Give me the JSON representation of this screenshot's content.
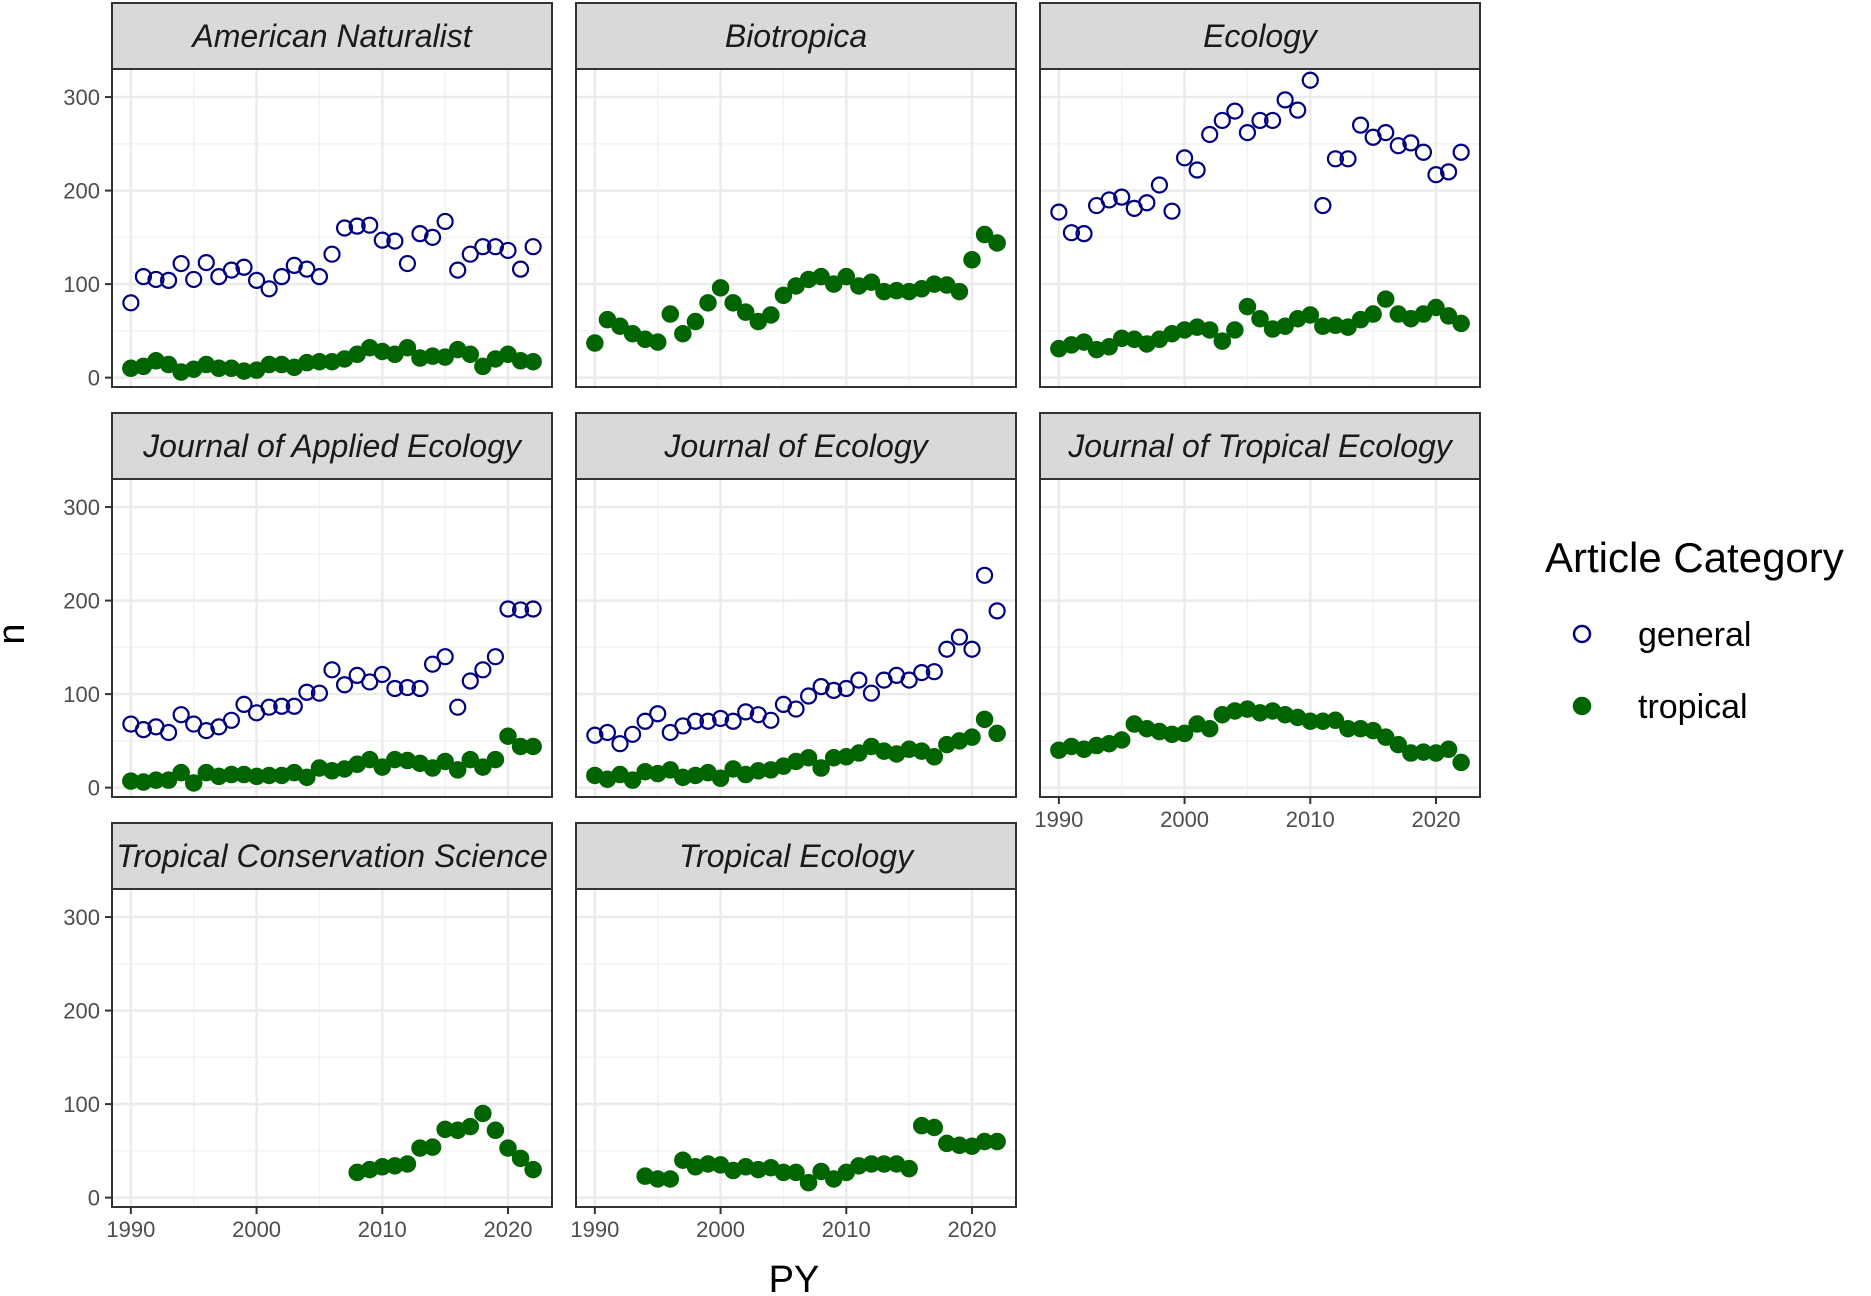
{
  "chart_data": {
    "type": "scatter",
    "facet_wrap": true,
    "xlabel": "PY",
    "ylabel": "n",
    "xlim": [
      1988.5,
      2023.5
    ],
    "ylim": [
      -10,
      330
    ],
    "x_ticks": [
      1990,
      2000,
      2010,
      2020
    ],
    "y_ticks": [
      0,
      100,
      200,
      300
    ],
    "grid": true,
    "legend": {
      "title": "Article Category",
      "position": "right",
      "items": [
        {
          "label": "general",
          "color": "#000080",
          "shape": "open-circle"
        },
        {
          "label": "tropical",
          "color": "#006400",
          "shape": "filled-circle"
        }
      ]
    },
    "panels": [
      {
        "title": "American Naturalist",
        "series": [
          {
            "name": "general",
            "x": [
              1990,
              1991,
              1992,
              1993,
              1994,
              1995,
              1996,
              1997,
              1998,
              1999,
              2000,
              2001,
              2002,
              2003,
              2004,
              2005,
              2006,
              2007,
              2008,
              2009,
              2010,
              2011,
              2012,
              2013,
              2014,
              2015,
              2016,
              2017,
              2018,
              2019,
              2020,
              2021,
              2022
            ],
            "y": [
              80,
              108,
              105,
              104,
              122,
              105,
              123,
              108,
              115,
              118,
              104,
              95,
              108,
              120,
              116,
              108,
              132,
              160,
              162,
              163,
              147,
              146,
              122,
              154,
              150,
              167,
              115,
              132,
              140,
              140,
              136,
              116,
              140
            ]
          },
          {
            "name": "tropical",
            "x": [
              1990,
              1991,
              1992,
              1993,
              1994,
              1995,
              1996,
              1997,
              1998,
              1999,
              2000,
              2001,
              2002,
              2003,
              2004,
              2005,
              2006,
              2007,
              2008,
              2009,
              2010,
              2011,
              2012,
              2013,
              2014,
              2015,
              2016,
              2017,
              2018,
              2019,
              2020,
              2021,
              2022
            ],
            "y": [
              10,
              12,
              18,
              14,
              6,
              9,
              14,
              10,
              10,
              7,
              8,
              14,
              14,
              11,
              16,
              17,
              17,
              20,
              25,
              32,
              28,
              25,
              32,
              21,
              23,
              22,
              30,
              25,
              12,
              20,
              25,
              18,
              17
            ]
          }
        ]
      },
      {
        "title": "Biotropica",
        "series": [
          {
            "name": "tropical",
            "x": [
              1990,
              1991,
              1992,
              1993,
              1994,
              1995,
              1996,
              1997,
              1998,
              1999,
              2000,
              2001,
              2002,
              2003,
              2004,
              2005,
              2006,
              2007,
              2008,
              2009,
              2010,
              2011,
              2012,
              2013,
              2014,
              2015,
              2016,
              2017,
              2018,
              2019,
              2020,
              2021,
              2022
            ],
            "y": [
              37,
              62,
              55,
              47,
              41,
              38,
              68,
              47,
              60,
              80,
              96,
              80,
              70,
              60,
              67,
              88,
              98,
              105,
              108,
              100,
              108,
              98,
              102,
              92,
              93,
              92,
              95,
              100,
              99,
              92,
              126,
              153,
              144
            ]
          }
        ]
      },
      {
        "title": "Ecology",
        "series": [
          {
            "name": "general",
            "x": [
              1990,
              1991,
              1992,
              1993,
              1994,
              1995,
              1996,
              1997,
              1998,
              1999,
              2000,
              2001,
              2002,
              2003,
              2004,
              2005,
              2006,
              2007,
              2008,
              2009,
              2010,
              2011,
              2012,
              2013,
              2014,
              2015,
              2016,
              2017,
              2018,
              2019,
              2020,
              2021,
              2022
            ],
            "y": [
              177,
              155,
              154,
              184,
              190,
              193,
              181,
              187,
              206,
              178,
              235,
              222,
              260,
              275,
              285,
              262,
              275,
              275,
              297,
              286,
              318,
              184,
              234,
              234,
              270,
              257,
              262,
              248,
              251,
              241,
              217,
              220,
              241
            ]
          },
          {
            "name": "tropical",
            "x": [
              1990,
              1991,
              1992,
              1993,
              1994,
              1995,
              1996,
              1997,
              1998,
              1999,
              2000,
              2001,
              2002,
              2003,
              2004,
              2005,
              2006,
              2007,
              2008,
              2009,
              2010,
              2011,
              2012,
              2013,
              2014,
              2015,
              2016,
              2017,
              2018,
              2019,
              2020,
              2021,
              2022
            ],
            "y": [
              31,
              35,
              38,
              30,
              33,
              42,
              41,
              36,
              41,
              47,
              51,
              54,
              51,
              39,
              51,
              76,
              63,
              52,
              55,
              63,
              67,
              55,
              56,
              54,
              62,
              68,
              84,
              68,
              63,
              68,
              75,
              66,
              58
            ]
          }
        ]
      },
      {
        "title": "Journal of Applied Ecology",
        "series": [
          {
            "name": "general",
            "x": [
              1990,
              1991,
              1992,
              1993,
              1994,
              1995,
              1996,
              1997,
              1998,
              1999,
              2000,
              2001,
              2002,
              2003,
              2004,
              2005,
              2006,
              2007,
              2008,
              2009,
              2010,
              2011,
              2012,
              2013,
              2014,
              2015,
              2016,
              2017,
              2018,
              2019,
              2020,
              2021,
              2022
            ],
            "y": [
              68,
              62,
              65,
              59,
              78,
              68,
              61,
              65,
              72,
              89,
              80,
              86,
              87,
              87,
              102,
              101,
              126,
              110,
              120,
              113,
              121,
              106,
              107,
              106,
              132,
              140,
              86,
              114,
              126,
              140,
              191,
              190,
              191
            ]
          },
          {
            "name": "tropical",
            "x": [
              1990,
              1991,
              1992,
              1993,
              1994,
              1995,
              1996,
              1997,
              1998,
              1999,
              2000,
              2001,
              2002,
              2003,
              2004,
              2005,
              2006,
              2007,
              2008,
              2009,
              2010,
              2011,
              2012,
              2013,
              2014,
              2015,
              2016,
              2017,
              2018,
              2019,
              2020,
              2021,
              2022
            ],
            "y": [
              7,
              6,
              8,
              8,
              16,
              5,
              16,
              12,
              14,
              14,
              12,
              13,
              13,
              16,
              11,
              21,
              18,
              20,
              25,
              30,
              22,
              30,
              29,
              26,
              21,
              28,
              19,
              30,
              22,
              30,
              55,
              44,
              44
            ]
          }
        ]
      },
      {
        "title": "Journal of Ecology",
        "series": [
          {
            "name": "general",
            "x": [
              1990,
              1991,
              1992,
              1993,
              1994,
              1995,
              1996,
              1997,
              1998,
              1999,
              2000,
              2001,
              2002,
              2003,
              2004,
              2005,
              2006,
              2007,
              2008,
              2009,
              2010,
              2011,
              2012,
              2013,
              2014,
              2015,
              2016,
              2017,
              2018,
              2019,
              2020,
              2021,
              2022
            ],
            "y": [
              56,
              59,
              47,
              57,
              71,
              79,
              59,
              66,
              71,
              71,
              74,
              71,
              81,
              78,
              72,
              89,
              84,
              98,
              108,
              104,
              106,
              115,
              101,
              115,
              120,
              115,
              123,
              124,
              148,
              161,
              148,
              227,
              189
            ]
          },
          {
            "name": "tropical",
            "x": [
              1990,
              1991,
              1992,
              1993,
              1994,
              1995,
              1996,
              1997,
              1998,
              1999,
              2000,
              2001,
              2002,
              2003,
              2004,
              2005,
              2006,
              2007,
              2008,
              2009,
              2010,
              2011,
              2012,
              2013,
              2014,
              2015,
              2016,
              2017,
              2018,
              2019,
              2020,
              2021,
              2022
            ],
            "y": [
              13,
              9,
              14,
              8,
              17,
              15,
              19,
              11,
              13,
              16,
              10,
              20,
              14,
              18,
              19,
              23,
              28,
              32,
              21,
              32,
              33,
              37,
              44,
              39,
              36,
              41,
              39,
              33,
              46,
              50,
              54,
              73,
              58
            ]
          }
        ]
      },
      {
        "title": "Journal of Tropical Ecology",
        "series": [
          {
            "name": "tropical",
            "x": [
              1990,
              1991,
              1992,
              1993,
              1994,
              1995,
              1996,
              1997,
              1998,
              1999,
              2000,
              2001,
              2002,
              2003,
              2004,
              2005,
              2006,
              2007,
              2008,
              2009,
              2010,
              2011,
              2012,
              2013,
              2014,
              2015,
              2016,
              2017,
              2018,
              2019,
              2020,
              2021,
              2022
            ],
            "y": [
              40,
              44,
              41,
              45,
              47,
              51,
              68,
              63,
              60,
              57,
              58,
              68,
              63,
              78,
              82,
              84,
              80,
              82,
              78,
              75,
              71,
              71,
              72,
              63,
              63,
              61,
              54,
              46,
              37,
              38,
              37,
              41,
              27
            ]
          }
        ]
      },
      {
        "title": "Tropical Conservation Science",
        "series": [
          {
            "name": "tropical",
            "x": [
              2008,
              2009,
              2010,
              2011,
              2012,
              2013,
              2014,
              2015,
              2016,
              2017,
              2018,
              2019,
              2020,
              2021,
              2022
            ],
            "y": [
              27,
              30,
              33,
              34,
              36,
              53,
              54,
              73,
              72,
              76,
              90,
              72,
              53,
              42,
              30
            ]
          }
        ]
      },
      {
        "title": "Tropical Ecology",
        "series": [
          {
            "name": "tropical",
            "x": [
              1994,
              1995,
              1996,
              1997,
              1998,
              1999,
              2000,
              2001,
              2002,
              2003,
              2004,
              2005,
              2006,
              2007,
              2008,
              2009,
              2010,
              2011,
              2012,
              2013,
              2014,
              2015,
              2016,
              2017,
              2018,
              2019,
              2020,
              2021,
              2022
            ],
            "y": [
              23,
              20,
              20,
              40,
              33,
              36,
              35,
              29,
              33,
              30,
              32,
              27,
              27,
              16,
              28,
              20,
              27,
              34,
              36,
              36,
              36,
              31,
              77,
              75,
              58,
              56,
              55,
              60,
              60
            ]
          }
        ]
      }
    ]
  }
}
